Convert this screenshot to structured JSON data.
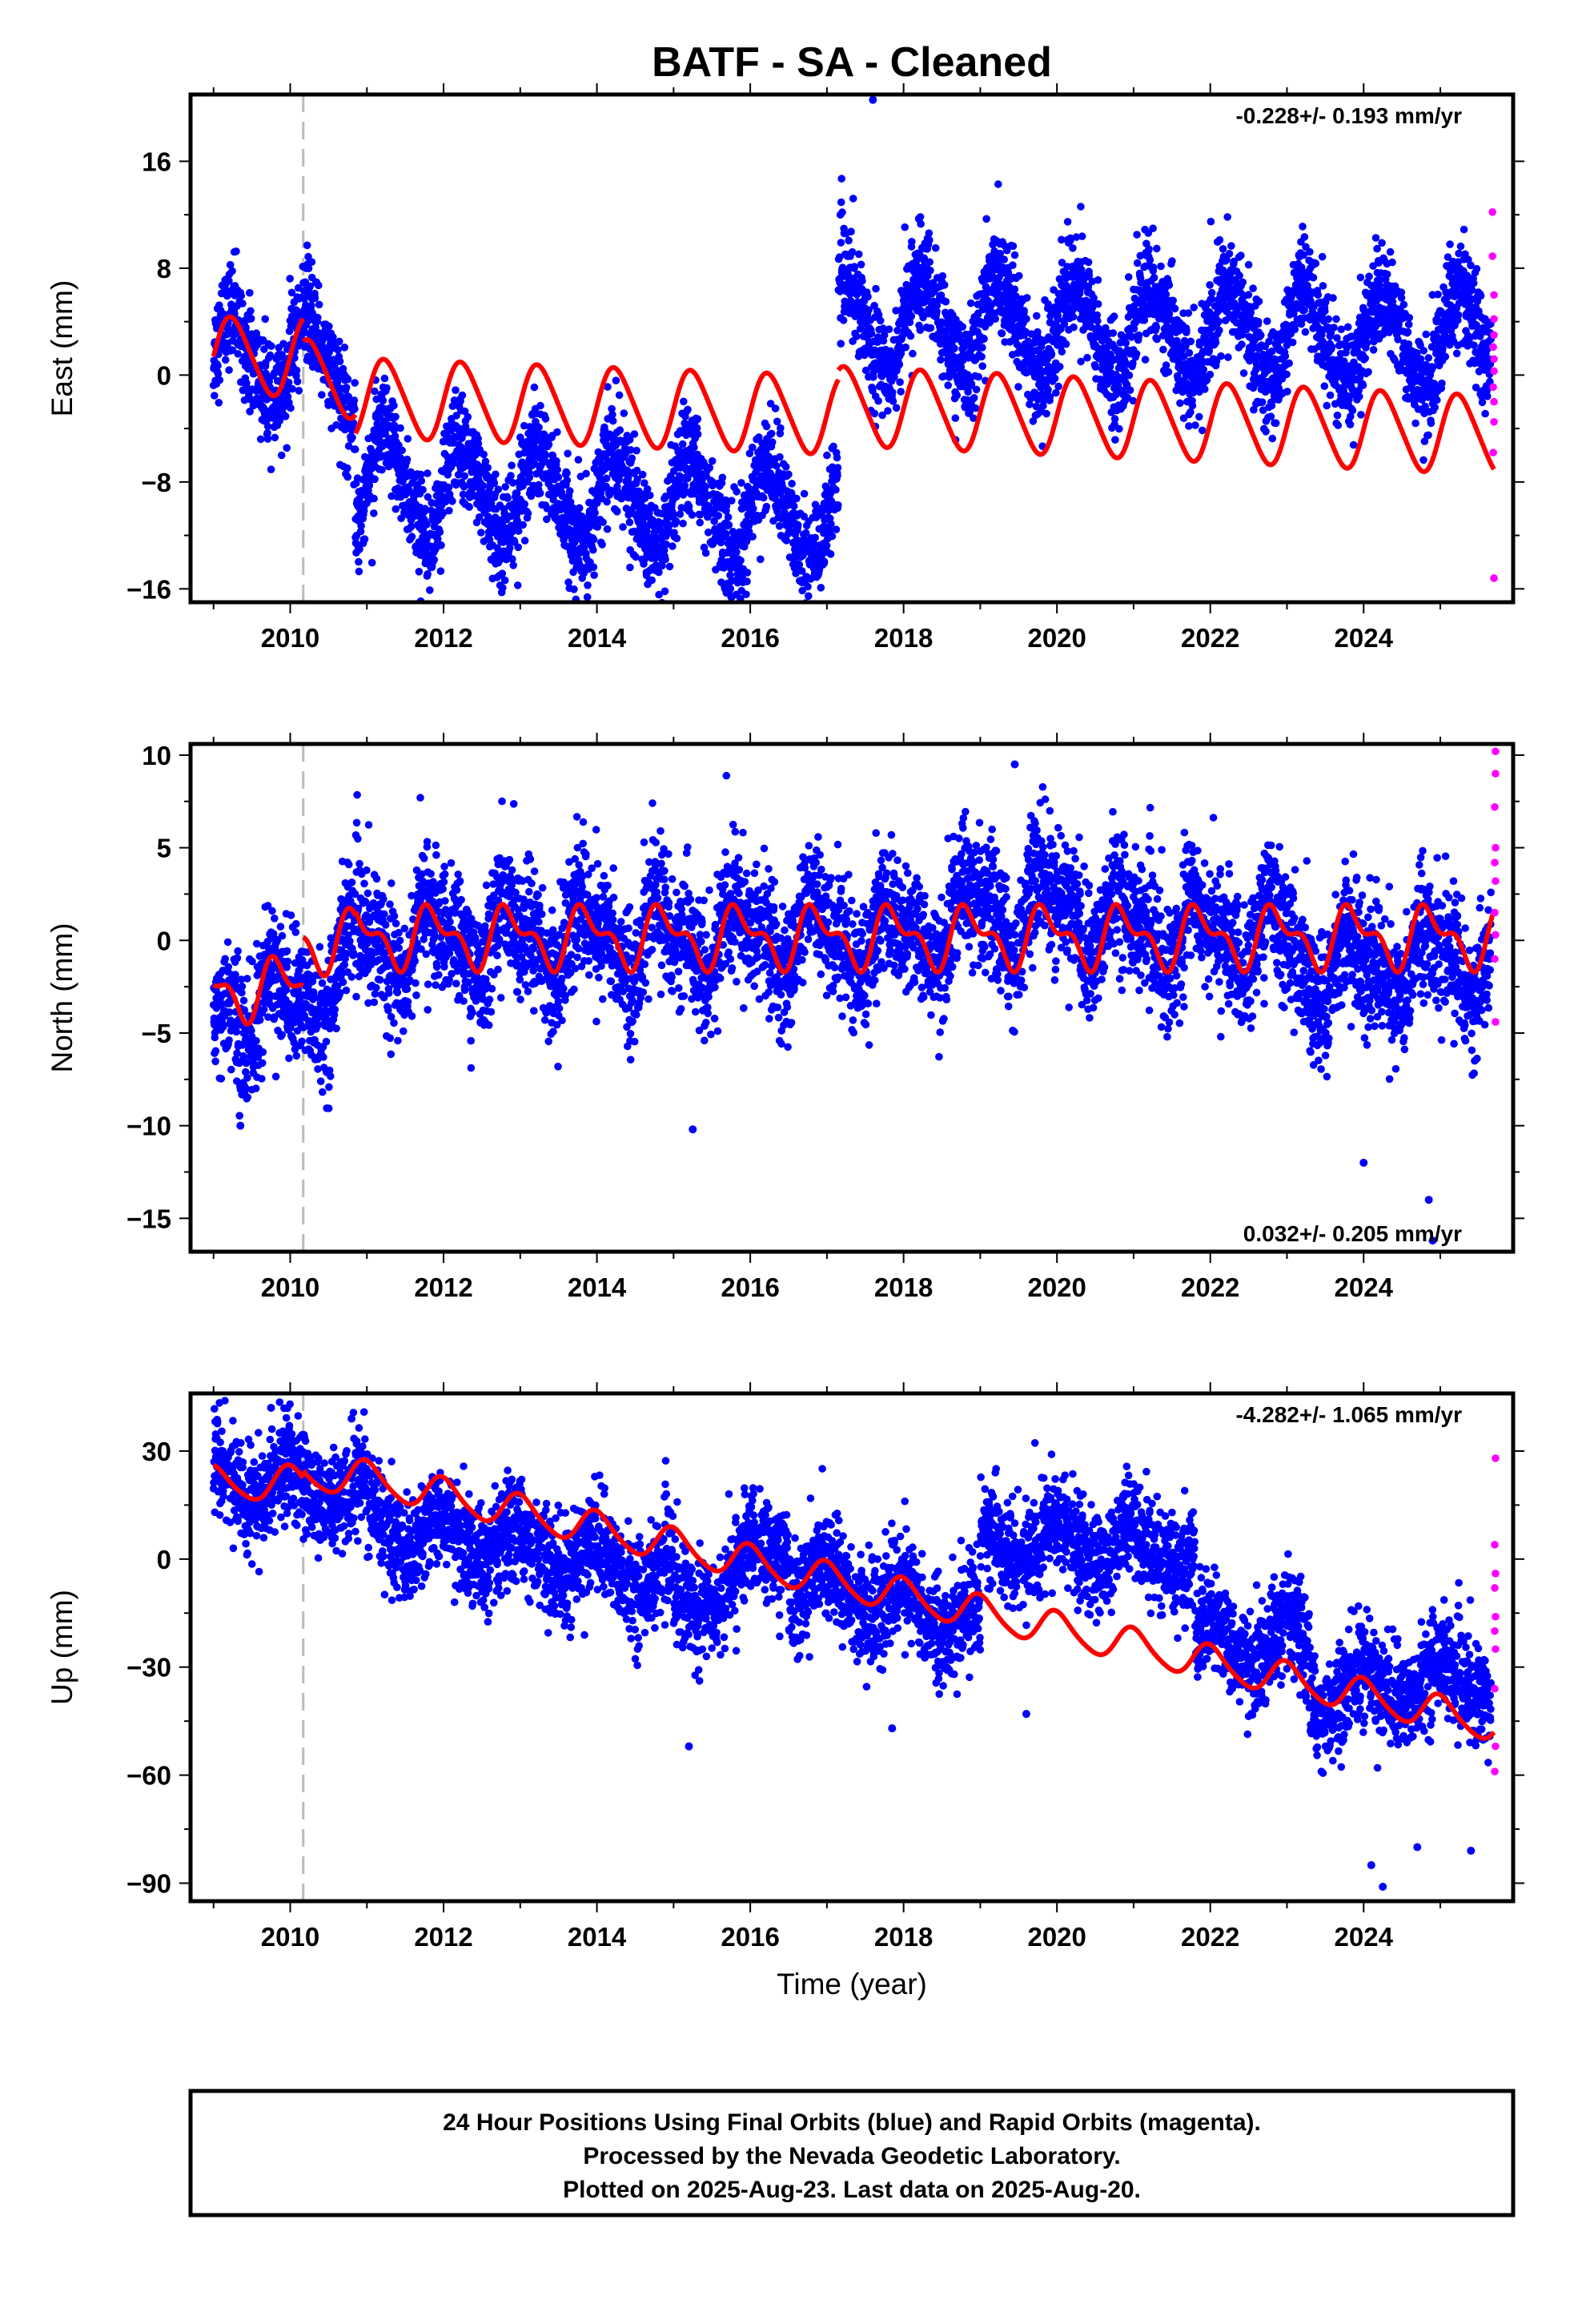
{
  "title": "BATF  - SA - Cleaned",
  "footer": {
    "lines": [
      "24 Hour Positions Using Final Orbits (blue) and Rapid Orbits (magenta).",
      "Processed by the Nevada Geodetic Laboratory.",
      "Plotted on 2025-Aug-23. Last data on 2025-Aug-20."
    ]
  },
  "colors": {
    "final_orbits": "#0000ff",
    "rapid_orbits": "#ff00ff",
    "model": "#ff0000",
    "event_line": "#bbbbbb"
  },
  "chart_data": [
    {
      "type": "scatter",
      "name": "east",
      "ylabel": "East (mm)",
      "xlabel": "",
      "rate_text": "-0.228+/- 0.193 mm/yr",
      "xlim": [
        2008.7,
        2025.95
      ],
      "ylim": [
        -17,
        21
      ],
      "xticks": [
        2010,
        2012,
        2014,
        2016,
        2018,
        2020,
        2022,
        2024
      ],
      "yticks": [
        -16,
        -8,
        0,
        8,
        16
      ],
      "event_line_x": 2010.17,
      "trend_segments": [
        {
          "x": [
            2009.0,
            2010.17
          ],
          "y": [
            1.2,
            1.2
          ]
        },
        {
          "x": [
            2010.17,
            2010.85
          ],
          "y": [
            1.2,
            0.5
          ]
        },
        {
          "x": [
            2010.85,
            2017.15
          ],
          "y": [
            -8.0,
            -10.7
          ]
        },
        {
          "x": [
            2017.15,
            2025.7
          ],
          "y": [
            4.0,
            2.5
          ]
        }
      ],
      "model_offsets": [
        {
          "x": [
            2009.0,
            2010.17
          ],
          "y": [
            1.4,
            1.4
          ]
        },
        {
          "x": [
            2010.17,
            2010.85
          ],
          "y": [
            -0.3,
            -0.3
          ]
        },
        {
          "x": [
            2010.85,
            2017.15
          ],
          "y": [
            -1.7,
            -3.0
          ]
        },
        {
          "x": [
            2017.15,
            2025.7
          ],
          "y": [
            -2.3,
            -4.5
          ]
        }
      ],
      "seasonal": {
        "amp_annual": 3.4,
        "phase_annual": 0.0,
        "amp_semi": 0.4,
        "phase_semi": 0.5
      },
      "noise_sd": 1.9,
      "outliers": [
        [
          2017.6,
          20.6
        ],
        [
          2018.2,
          11.7
        ]
      ],
      "rapid_points": [
        [
          2025.68,
          12.2
        ],
        [
          2025.68,
          8.9
        ],
        [
          2025.7,
          6.0
        ],
        [
          2025.7,
          4.2
        ],
        [
          2025.7,
          3.0
        ],
        [
          2025.69,
          2.1
        ],
        [
          2025.7,
          1.2
        ],
        [
          2025.7,
          0.3
        ],
        [
          2025.69,
          -0.9
        ],
        [
          2025.7,
          -2.0
        ],
        [
          2025.7,
          -3.5
        ],
        [
          2025.69,
          -5.8
        ],
        [
          2025.7,
          -15.2
        ]
      ],
      "model_markers_x": []
    },
    {
      "type": "scatter",
      "name": "north",
      "ylabel": "North (mm)",
      "xlabel": "",
      "rate_text": "0.032+/- 0.205 mm/yr",
      "xlim": [
        2008.7,
        2025.95
      ],
      "ylim": [
        -16.8,
        10.6
      ],
      "xticks": [
        2010,
        2012,
        2014,
        2016,
        2018,
        2020,
        2022,
        2024
      ],
      "yticks": [
        -15,
        -10,
        -5,
        0,
        5,
        10
      ],
      "event_line_x": 2010.17,
      "trend_segments": [
        {
          "x": [
            2009.0,
            2010.17
          ],
          "y": [
            -3.5,
            -3.5
          ]
        },
        {
          "x": [
            2010.17,
            2010.85
          ],
          "y": [
            -3.5,
            -0.5
          ]
        },
        {
          "x": [
            2010.85,
            2018.3
          ],
          "y": [
            0.0,
            0.2
          ]
        },
        {
          "x": [
            2018.3,
            2020.3
          ],
          "y": [
            0.8,
            2.0
          ]
        },
        {
          "x": [
            2020.3,
            2023.1
          ],
          "y": [
            1.0,
            0.0
          ]
        },
        {
          "x": [
            2023.1,
            2025.7
          ],
          "y": [
            -1.8,
            -0.8
          ]
        }
      ],
      "model_offsets": [
        {
          "x": [
            2009.0,
            2010.17
          ],
          "y": [
            -2.6,
            -2.6
          ]
        },
        {
          "x": [
            2010.17,
            2010.85
          ],
          "y": [
            0.0,
            0.0
          ]
        },
        {
          "x": [
            2010.85,
            2025.7
          ],
          "y": [
            0.2,
            0.2
          ]
        }
      ],
      "seasonal": {
        "amp_annual": 1.6,
        "phase_annual": 0.62,
        "amp_semi": 0.9,
        "phase_semi": 0.1
      },
      "noise_sd": 1.7,
      "outliers": [
        [
          2019.45,
          9.5
        ],
        [
          2009.35,
          -10.0
        ],
        [
          2015.25,
          -10.2
        ],
        [
          2024.0,
          -12.0
        ],
        [
          2024.85,
          -14.0
        ],
        [
          2024.9,
          -16.2
        ]
      ],
      "rapid_points": [
        [
          2025.72,
          10.2
        ],
        [
          2025.72,
          9.0
        ],
        [
          2025.71,
          7.2
        ],
        [
          2025.72,
          5.0
        ],
        [
          2025.71,
          4.2
        ],
        [
          2025.72,
          3.2
        ],
        [
          2025.71,
          1.5
        ],
        [
          2025.72,
          0.3
        ],
        [
          2025.71,
          -1.0
        ],
        [
          2025.72,
          -4.4
        ]
      ],
      "model_markers_x": []
    },
    {
      "type": "scatter",
      "name": "up",
      "ylabel": "Up (mm)",
      "xlabel": "Time (year)",
      "rate_text": "-4.282+/- 1.065 mm/yr",
      "xlim": [
        2008.7,
        2025.95
      ],
      "ylim": [
        -95,
        46
      ],
      "xticks": [
        2010,
        2012,
        2014,
        2016,
        2018,
        2020,
        2022,
        2024
      ],
      "yticks": [
        -90,
        -60,
        -30,
        0,
        30
      ],
      "event_line_x": 2010.17,
      "trend_segments": [
        {
          "x": [
            2009.0,
            2011.0
          ],
          "y": [
            22.0,
            18.0
          ]
        },
        {
          "x": [
            2011.0,
            2015.0
          ],
          "y": [
            10.0,
            -5.0
          ]
        },
        {
          "x": [
            2015.0,
            2016.5
          ],
          "y": [
            -15.0,
            5.0
          ]
        },
        {
          "x": [
            2016.5,
            2019.0
          ],
          "y": [
            -5.0,
            -18.0
          ]
        },
        {
          "x": [
            2019.0,
            2021.8
          ],
          "y": [
            5.0,
            2.0
          ]
        },
        {
          "x": [
            2021.8,
            2023.3
          ],
          "y": [
            -22.0,
            -25.0
          ]
        },
        {
          "x": [
            2023.3,
            2025.7
          ],
          "y": [
            -38.0,
            -32.0
          ]
        }
      ],
      "model_offsets": [
        {
          "x": [
            2009.0,
            2010.17
          ],
          "y": [
            21.0,
            21.0
          ]
        },
        {
          "x": [
            2010.17,
            2010.85
          ],
          "y": [
            23.0,
            23.0
          ]
        },
        {
          "x": [
            2010.85,
            2025.7
          ],
          "y": [
            23.0,
            -46.0
          ]
        }
      ],
      "seasonal": {
        "amp_annual": 5.5,
        "phase_annual": 0.75,
        "amp_semi": 0.8,
        "phase_semi": 0.3
      },
      "noise_sd": 7.0,
      "outliers": [
        [
          2009.75,
          42.0
        ],
        [
          2010.8,
          39.0
        ],
        [
          2015.2,
          -52.0
        ],
        [
          2017.85,
          -47.0
        ],
        [
          2019.6,
          -43.0
        ],
        [
          2024.1,
          -85.0
        ],
        [
          2024.25,
          -91.0
        ],
        [
          2024.7,
          -80.0
        ],
        [
          2025.4,
          -81.0
        ]
      ],
      "rapid_points": [
        [
          2025.72,
          28.0
        ],
        [
          2025.71,
          4.0
        ],
        [
          2025.72,
          -4.0
        ],
        [
          2025.71,
          -8.0
        ],
        [
          2025.72,
          -16.0
        ],
        [
          2025.71,
          -20.0
        ],
        [
          2025.72,
          -25.0
        ],
        [
          2025.71,
          -36.0
        ],
        [
          2025.72,
          -52.0
        ],
        [
          2025.71,
          -59.0
        ]
      ],
      "model_markers_x": [
        2010.17,
        2010.85
      ]
    }
  ]
}
